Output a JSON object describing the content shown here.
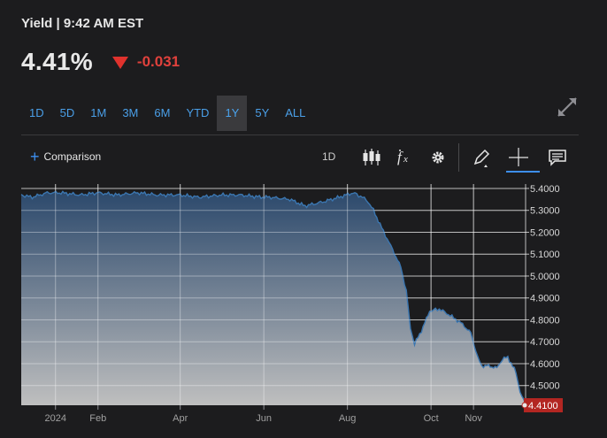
{
  "header": {
    "title": "Yield | 9:42 AM EST",
    "price": "4.41%",
    "change": "-0.031",
    "change_direction": "down"
  },
  "ranges": [
    {
      "label": "1D",
      "active": false
    },
    {
      "label": "5D",
      "active": false
    },
    {
      "label": "1M",
      "active": false
    },
    {
      "label": "3M",
      "active": false
    },
    {
      "label": "6M",
      "active": false
    },
    {
      "label": "YTD",
      "active": false
    },
    {
      "label": "1Y",
      "active": true
    },
    {
      "label": "5Y",
      "active": false
    },
    {
      "label": "ALL",
      "active": false
    }
  ],
  "toolbar": {
    "comparison_label": "Comparison",
    "interval_label": "1D",
    "tools": [
      "candlestick-icon",
      "fx-icon",
      "gear-icon",
      "pencil-icon",
      "crosshair-icon",
      "comment-icon"
    ]
  },
  "colors": {
    "background": "#1c1c1e",
    "accent": "#4a9fe8",
    "down": "#e0322d",
    "area_top": "#2c4a6e",
    "area_bottom": "#c4c4c4",
    "line": "#3b76b0"
  },
  "chart_data": {
    "type": "area",
    "title": "",
    "xlabel": "",
    "ylabel": "",
    "ylim": [
      4.41,
      5.42
    ],
    "y_ticks": [
      "5.4000",
      "5.3000",
      "5.2000",
      "5.1000",
      "5.0000",
      "4.9000",
      "4.8000",
      "4.7000",
      "4.6000",
      "4.5000"
    ],
    "x_ticks": [
      "2024",
      "Feb",
      "Apr",
      "Jun",
      "Aug",
      "Oct",
      "Nov"
    ],
    "x_tick_dates": [
      "2024-01-01",
      "2024-02-01",
      "2024-04-01",
      "2024-06-01",
      "2024-08-01",
      "2024-10-01",
      "2024-11-01"
    ],
    "x_range": [
      "2023-12-07",
      "2024-12-09"
    ],
    "last_value_label": "4.4100",
    "grid": true,
    "series": [
      {
        "x": [
          "2023-12-07",
          "2023-12-15",
          "2023-12-26",
          "2024-01-05",
          "2024-01-19",
          "2024-02-01",
          "2024-02-15",
          "2024-03-01",
          "2024-03-15",
          "2024-04-01",
          "2024-04-15",
          "2024-05-01",
          "2024-05-15",
          "2024-05-30",
          "2024-06-05",
          "2024-06-20",
          "2024-07-01",
          "2024-07-15",
          "2024-07-26",
          "2024-08-05",
          "2024-08-12",
          "2024-08-16",
          "2024-08-20",
          "2024-08-26",
          "2024-09-03",
          "2024-09-09",
          "2024-09-13",
          "2024-09-16",
          "2024-09-19",
          "2024-09-24",
          "2024-09-30",
          "2024-10-07",
          "2024-10-15",
          "2024-10-24",
          "2024-10-30",
          "2024-11-04",
          "2024-11-07",
          "2024-11-12",
          "2024-11-18",
          "2024-11-22",
          "2024-11-26",
          "2024-12-02",
          "2024-12-05",
          "2024-12-09"
        ],
        "values": [
          5.37,
          5.36,
          5.38,
          5.38,
          5.37,
          5.38,
          5.37,
          5.38,
          5.37,
          5.37,
          5.36,
          5.37,
          5.37,
          5.36,
          5.36,
          5.35,
          5.32,
          5.34,
          5.36,
          5.38,
          5.36,
          5.34,
          5.3,
          5.22,
          5.12,
          5.04,
          4.93,
          4.76,
          4.69,
          4.75,
          4.84,
          4.85,
          4.82,
          4.78,
          4.74,
          4.63,
          4.59,
          4.59,
          4.58,
          4.62,
          4.63,
          4.56,
          4.47,
          4.41
        ]
      }
    ]
  }
}
